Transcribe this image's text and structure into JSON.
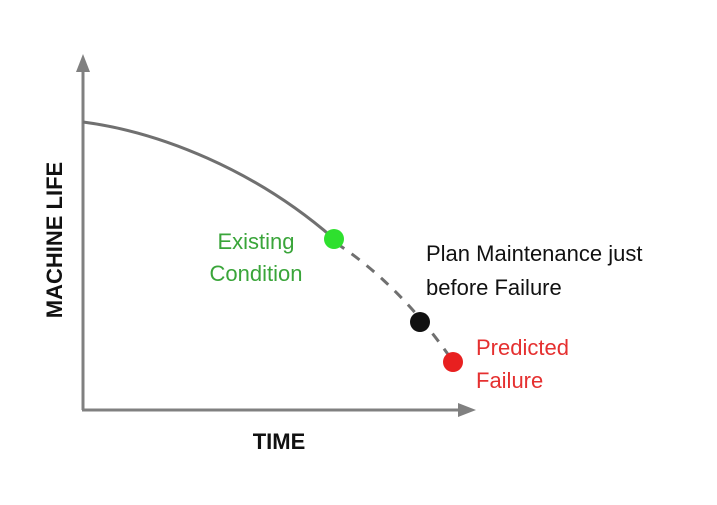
{
  "axes": {
    "x_label": "TIME",
    "y_label": "MACHINE LIFE"
  },
  "annotations": {
    "existing_condition": [
      "Existing",
      "Condition"
    ],
    "plan_maintenance": [
      "Plan Maintenance just",
      "before Failure"
    ],
    "predicted_failure": [
      "Predicted",
      "Failure"
    ]
  },
  "colors": {
    "axis": "#808080",
    "curve": "#707070",
    "existing_condition": "#2ee02e",
    "plan_maintenance": "#111111",
    "predicted_failure": "#e82020",
    "existing_text": "#3aa53a",
    "predicted_text": "#e53030"
  }
}
